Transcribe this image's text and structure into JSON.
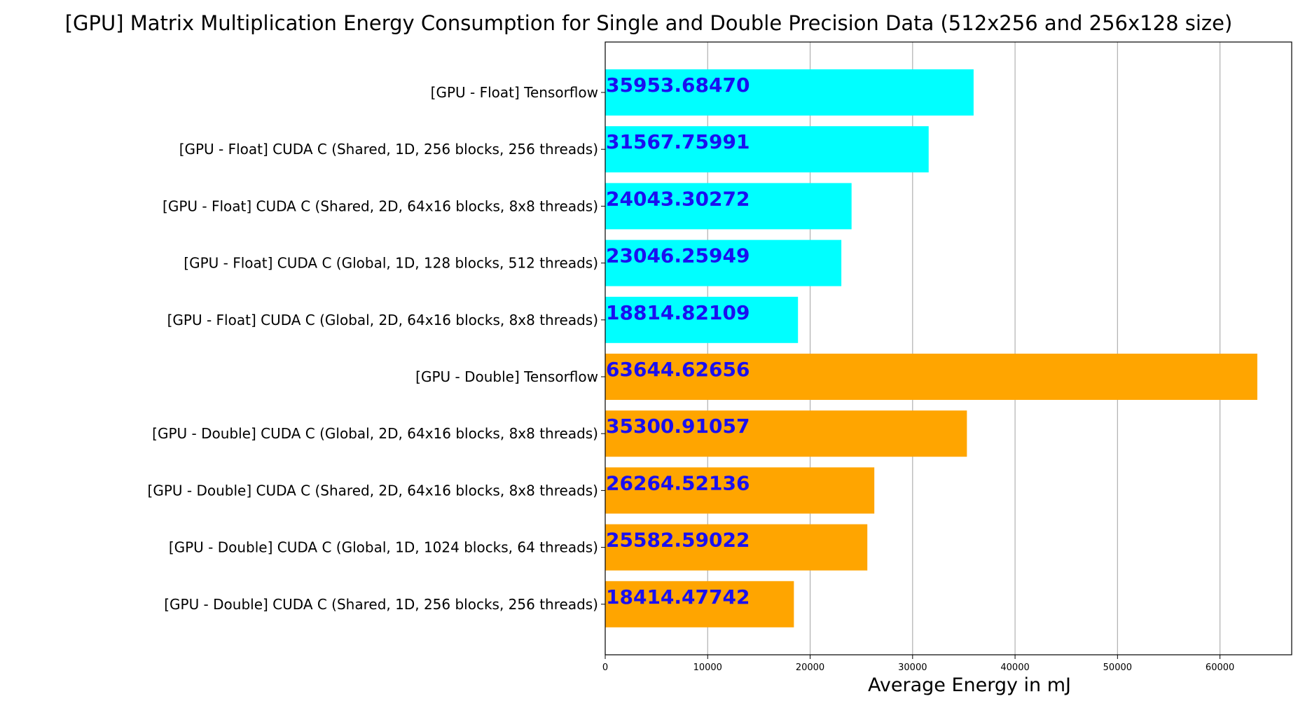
{
  "chart_data": {
    "type": "bar",
    "orientation": "horizontal",
    "title": "[GPU] Matrix Multiplication Energy Consumption for Single and Double Precision Data (512x256 and 256x128 size)",
    "xlabel": "Average Energy in mJ",
    "ylabel": "",
    "xlim": [
      0,
      67000
    ],
    "xticks": [
      0,
      10000,
      20000,
      30000,
      40000,
      50000,
      60000
    ],
    "grid": "x",
    "bars": [
      {
        "label": "[GPU - Float] Tensorflow",
        "value": 35953.6847,
        "value_text": "35953.68470",
        "color": "#00ffff"
      },
      {
        "label": "[GPU - Float] CUDA C (Shared, 1D, 256 blocks, 256 threads)",
        "value": 31567.75991,
        "value_text": "31567.75991",
        "color": "#00ffff"
      },
      {
        "label": "[GPU - Float] CUDA C (Shared, 2D, 64x16 blocks, 8x8 threads)",
        "value": 24043.30272,
        "value_text": "24043.30272",
        "color": "#00ffff"
      },
      {
        "label": "[GPU - Float] CUDA C (Global, 1D, 128 blocks, 512 threads)",
        "value": 23046.25949,
        "value_text": "23046.25949",
        "color": "#00ffff"
      },
      {
        "label": "[GPU - Float] CUDA C (Global, 2D, 64x16 blocks, 8x8 threads)",
        "value": 18814.82109,
        "value_text": "18814.82109",
        "color": "#00ffff"
      },
      {
        "label": "[GPU - Double] Tensorflow",
        "value": 63644.62656,
        "value_text": "63644.62656",
        "color": "#ffa500"
      },
      {
        "label": "[GPU - Double] CUDA C (Global, 2D, 64x16 blocks, 8x8 threads)",
        "value": 35300.91057,
        "value_text": "35300.91057",
        "color": "#ffa500"
      },
      {
        "label": "[GPU - Double] CUDA C (Shared, 2D, 64x16 blocks, 8x8 threads)",
        "value": 26264.52136,
        "value_text": "26264.52136",
        "color": "#ffa500"
      },
      {
        "label": "[GPU - Double] CUDA C (Global, 1D, 1024 blocks, 64 threads)",
        "value": 25582.59022,
        "value_text": "25582.59022",
        "color": "#ffa500"
      },
      {
        "label": "[GPU - Double] CUDA C (Shared, 1D, 256 blocks, 256 threads)",
        "value": 18414.47742,
        "value_text": "18414.47742",
        "color": "#ffa500"
      }
    ]
  }
}
